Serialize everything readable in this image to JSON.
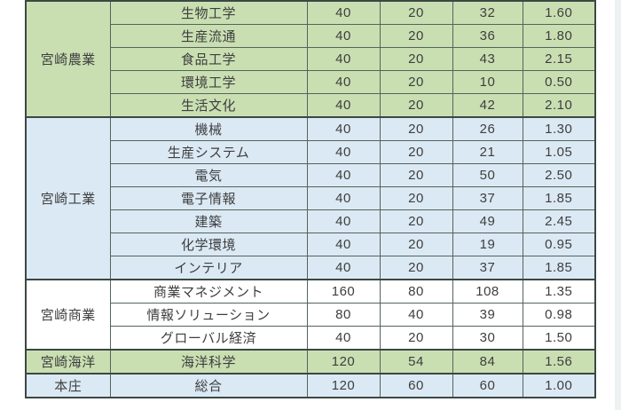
{
  "colors": {
    "green": "#c9dfb2",
    "blue": "#dbe9f4",
    "white": "#ffffff",
    "border_outer": "#3b4843",
    "border_inner": "#55635c",
    "text": "#3e3e3e",
    "page_background": "#ffffff"
  },
  "table": {
    "groups": [
      {
        "school": "宮崎農業",
        "bg": "green",
        "rows": [
          {
            "dept": "生物工学",
            "values": [
              "40",
              "20",
              "32",
              "1.60"
            ]
          },
          {
            "dept": "生産流通",
            "values": [
              "40",
              "20",
              "36",
              "1.80"
            ]
          },
          {
            "dept": "食品工学",
            "values": [
              "40",
              "20",
              "43",
              "2.15"
            ]
          },
          {
            "dept": "環境工学",
            "values": [
              "40",
              "20",
              "10",
              "0.50"
            ]
          },
          {
            "dept": "生活文化",
            "values": [
              "40",
              "20",
              "42",
              "2.10"
            ]
          }
        ]
      },
      {
        "school": "宮崎工業",
        "bg": "blue",
        "rows": [
          {
            "dept": "機械",
            "values": [
              "40",
              "20",
              "26",
              "1.30"
            ]
          },
          {
            "dept": "生産システム",
            "values": [
              "40",
              "20",
              "21",
              "1.05"
            ]
          },
          {
            "dept": "電気",
            "values": [
              "40",
              "20",
              "50",
              "2.50"
            ]
          },
          {
            "dept": "電子情報",
            "values": [
              "40",
              "20",
              "37",
              "1.85"
            ]
          },
          {
            "dept": "建築",
            "values": [
              "40",
              "20",
              "49",
              "2.45"
            ]
          },
          {
            "dept": "化学環境",
            "values": [
              "40",
              "20",
              "19",
              "0.95"
            ]
          },
          {
            "dept": "インテリア",
            "values": [
              "40",
              "20",
              "37",
              "1.85"
            ]
          }
        ]
      },
      {
        "school": "宮崎商業",
        "bg": "white",
        "rows": [
          {
            "dept": "商業マネジメント",
            "values": [
              "160",
              "80",
              "108",
              "1.35"
            ]
          },
          {
            "dept": "情報ソリューション",
            "values": [
              "80",
              "40",
              "39",
              "0.98"
            ]
          },
          {
            "dept": "グローバル経済",
            "values": [
              "40",
              "20",
              "30",
              "1.50"
            ]
          }
        ]
      },
      {
        "school": "宮崎海洋",
        "bg": "green",
        "rows": [
          {
            "dept": "海洋科学",
            "values": [
              "120",
              "54",
              "84",
              "1.56"
            ]
          }
        ]
      },
      {
        "school": "本庄",
        "bg": "blue",
        "rows": [
          {
            "dept": "総合",
            "values": [
              "120",
              "60",
              "60",
              "1.00"
            ]
          }
        ]
      }
    ]
  }
}
